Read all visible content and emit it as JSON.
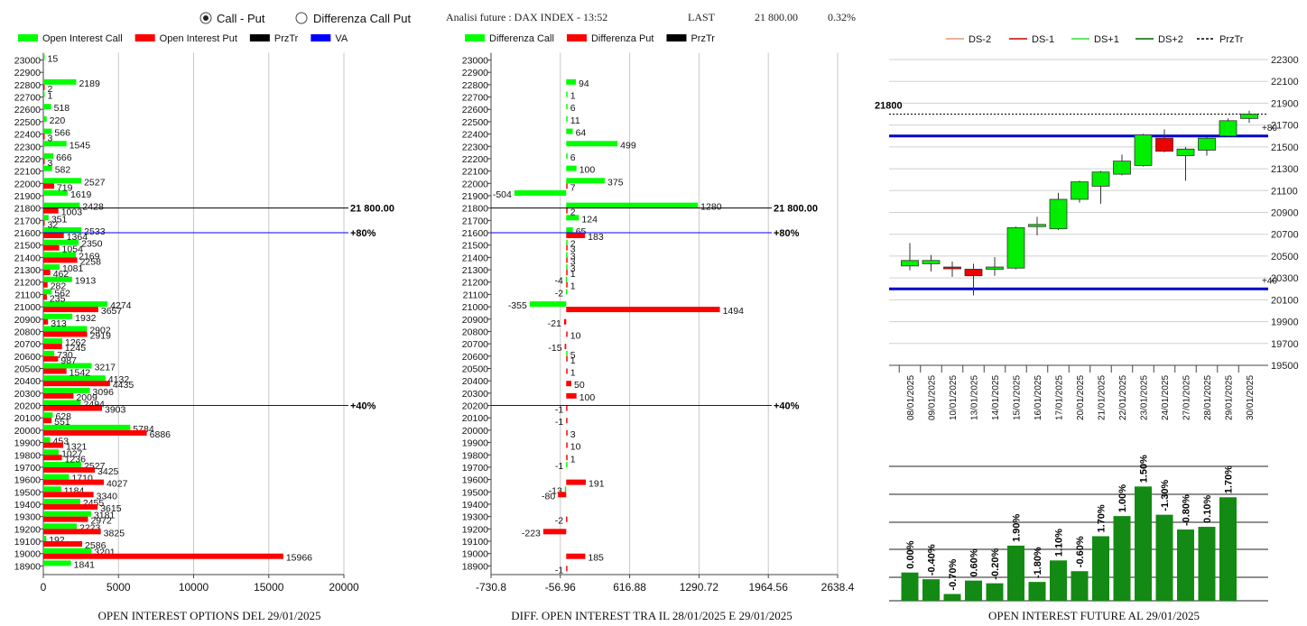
{
  "header": {
    "radio_call_put": "Call - Put",
    "radio_diff": "Differenza Call Put",
    "selected": "Call - Put",
    "analysis_label": "Analisi future : DAX INDEX - 13:52",
    "last_label": "LAST",
    "last_value": "21 800.00",
    "last_change": "0.32%"
  },
  "chart_data": [
    {
      "type": "bar",
      "title": "OPEN INTEREST OPTIONS DEL 29/01/2025",
      "orientation": "horizontal",
      "legend": [
        "Open Interest Call",
        "Open Interest Put",
        "PrzTr",
        "VA"
      ],
      "colors": {
        "call": "#00ff00",
        "put": "#ff0000",
        "prztr": "#000000",
        "va": "#0000ff"
      },
      "strikes": [
        23000,
        22900,
        22800,
        22700,
        22600,
        22500,
        22400,
        22300,
        22200,
        22100,
        22000,
        21900,
        21800,
        21700,
        21600,
        21500,
        21400,
        21300,
        21200,
        21100,
        21000,
        20900,
        20800,
        20700,
        20600,
        20500,
        20400,
        20300,
        20200,
        20100,
        20000,
        19900,
        19800,
        19700,
        19600,
        19500,
        19400,
        19300,
        19200,
        19100,
        19000,
        18900
      ],
      "series": [
        {
          "name": "Open Interest Call",
          "values": [
            15,
            null,
            2189,
            1,
            518,
            220,
            566,
            1545,
            666,
            582,
            2527,
            1619,
            2428,
            351,
            2533,
            2350,
            2169,
            1081,
            1913,
            562,
            4274,
            1932,
            2902,
            1262,
            730,
            3217,
            4132,
            3096,
            2494,
            628,
            5784,
            453,
            1027,
            2527,
            1710,
            1184,
            2455,
            3181,
            2223,
            192,
            3201,
            1841
          ]
        },
        {
          "name": "Open Interest Put",
          "values": [
            null,
            null,
            2,
            null,
            null,
            null,
            3,
            null,
            3,
            null,
            719,
            null,
            1003,
            32,
            1364,
            1054,
            2258,
            462,
            282,
            235,
            3657,
            313,
            2919,
            1245,
            987,
            1542,
            4435,
            2009,
            3903,
            551,
            6886,
            1321,
            1236,
            3425,
            4027,
            3340,
            3615,
            2972,
            3825,
            2586,
            15966,
            null
          ]
        }
      ],
      "reference_lines": [
        {
          "label": "21 800.00",
          "y": 21800,
          "color": "#000000"
        },
        {
          "label": "+80%",
          "y": 21600,
          "color": "#0000ff"
        },
        {
          "label": "+40%",
          "y": 20200,
          "color": "#0000ff"
        }
      ],
      "xlim": [
        0,
        20000
      ],
      "x_ticks": [
        "0",
        "5000",
        "10000",
        "15000",
        "20000"
      ]
    },
    {
      "type": "bar",
      "title": "DIFF. OPEN INTEREST TRA IL 28/01/2025 E 29/01/2025",
      "orientation": "horizontal",
      "legend": [
        "Differenza Call",
        "Differenza Put",
        "PrzTr"
      ],
      "strikes": [
        23000,
        22900,
        22800,
        22700,
        22600,
        22500,
        22400,
        22300,
        22200,
        22100,
        22000,
        21900,
        21800,
        21700,
        21600,
        21500,
        21400,
        21300,
        21200,
        21100,
        21000,
        20900,
        20800,
        20700,
        20600,
        20500,
        20400,
        20300,
        20200,
        20100,
        20000,
        19900,
        19800,
        19700,
        19600,
        19500,
        19400,
        19300,
        19200,
        19100,
        19000,
        18900
      ],
      "series": [
        {
          "name": "Differenza Call",
          "values": [
            null,
            null,
            94,
            1,
            6,
            11,
            64,
            499,
            6,
            100,
            375,
            -504,
            1280,
            124,
            65,
            2,
            3,
            3,
            -4,
            -2,
            -355,
            null,
            null,
            null,
            5,
            null,
            null,
            null,
            null,
            null,
            null,
            null,
            null,
            -1,
            null,
            -13,
            null,
            null,
            null,
            null,
            null,
            null
          ]
        },
        {
          "name": "Differenza Put",
          "values": [
            null,
            null,
            null,
            null,
            null,
            null,
            null,
            null,
            null,
            null,
            7,
            null,
            2,
            null,
            183,
            3,
            3,
            1,
            1,
            null,
            1494,
            -21,
            10,
            -15,
            1,
            1,
            50,
            100,
            -1,
            -1,
            3,
            10,
            1,
            null,
            191,
            -80,
            null,
            -2,
            -223,
            null,
            185,
            -1
          ]
        }
      ],
      "reference_lines": [
        {
          "label": "21 800.00",
          "y": 21800,
          "color": "#000000"
        },
        {
          "label": "+80%",
          "y": 21600,
          "color": "#0000ff"
        },
        {
          "label": "+40%",
          "y": 20200,
          "color": "#0000ff"
        }
      ],
      "xlim": [
        -730.8,
        2638.4
      ],
      "x_ticks": [
        "-730.8",
        "-56.96",
        "616.88",
        "1290.72",
        "1964.56",
        "2638.4"
      ]
    },
    {
      "type": "candlestick",
      "legend": [
        "DS-2",
        "DS-1",
        "DS+1",
        "DS+2",
        "PrzTr"
      ],
      "legend_colors": [
        "#e9967a",
        "#cc0000",
        "#33dd33",
        "#006400",
        "#000000"
      ],
      "dates": [
        "08/01/2025",
        "09/01/2025",
        "10/01/2025",
        "13/01/2025",
        "14/01/2025",
        "15/01/2025",
        "16/01/2025",
        "17/01/2025",
        "20/01/2025",
        "21/01/2025",
        "22/01/2025",
        "23/01/2025",
        "24/01/2025",
        "27/01/2025",
        "28/01/2025",
        "29/01/2025",
        "30/01/2025"
      ],
      "candles": [
        {
          "o": 20410,
          "c": 20460,
          "h": 20620,
          "l": 20370
        },
        {
          "o": 20430,
          "c": 20460,
          "h": 20510,
          "l": 20360
        },
        {
          "o": 20400,
          "c": 20390,
          "h": 20450,
          "l": 20310
        },
        {
          "o": 20380,
          "c": 20320,
          "h": 20430,
          "l": 20140
        },
        {
          "o": 20380,
          "c": 20400,
          "h": 20490,
          "l": 20320
        },
        {
          "o": 20390,
          "c": 20760,
          "h": 20770,
          "l": 20380
        },
        {
          "o": 20770,
          "c": 20790,
          "h": 20860,
          "l": 20690
        },
        {
          "o": 20750,
          "c": 21020,
          "h": 21080,
          "l": 20740
        },
        {
          "o": 21020,
          "c": 21180,
          "h": 21190,
          "l": 20990
        },
        {
          "o": 21140,
          "c": 21270,
          "h": 21280,
          "l": 20980
        },
        {
          "o": 21250,
          "c": 21370,
          "h": 21430,
          "l": 21240
        },
        {
          "o": 21330,
          "c": 21610,
          "h": 21620,
          "l": 21320
        },
        {
          "o": 21580,
          "c": 21460,
          "h": 21660,
          "l": 21450
        },
        {
          "o": 21420,
          "c": 21480,
          "h": 21500,
          "l": 21190
        },
        {
          "o": 21470,
          "c": 21580,
          "h": 21590,
          "l": 21420
        },
        {
          "o": 21600,
          "c": 21740,
          "h": 21760,
          "l": 21590
        },
        {
          "o": 21760,
          "c": 21800,
          "h": 21830,
          "l": 21720
        }
      ],
      "hlines": [
        {
          "y": 21600,
          "color": "#0000cc",
          "label": "+80"
        },
        {
          "y": 20200,
          "color": "#0000cc",
          "label": "+40"
        }
      ],
      "prztr": {
        "y": 21800,
        "label": "21800"
      },
      "ylim": [
        19500,
        22300
      ],
      "y_ticks": [
        22300,
        22100,
        21900,
        21700,
        21500,
        21300,
        21100,
        20900,
        20700,
        20500,
        20300,
        20100,
        19900,
        19700,
        19500
      ]
    },
    {
      "type": "bar",
      "title": "OPEN INTEREST FUTURE AL 29/01/2025",
      "categories": [
        "08/01/2025",
        "09/01/2025",
        "10/01/2025",
        "13/01/2025",
        "14/01/2025",
        "15/01/2025",
        "16/01/2025",
        "17/01/2025",
        "20/01/2025",
        "21/01/2025",
        "22/01/2025",
        "23/01/2025",
        "24/01/2025",
        "27/01/2025",
        "28/01/2025",
        "29/01/2025",
        "30/01/2025"
      ],
      "labels": [
        "0.00%",
        "-0.40%",
        "-0.70%",
        "0.60%",
        "-0.20%",
        "1.90%",
        "-1.80%",
        "1.10%",
        "-0.60%",
        "1.70%",
        "1.00%",
        "1.50%",
        "-1.30%",
        "-0.80%",
        "0.10%",
        "1.70%",
        ""
      ],
      "values": [
        0.21,
        0.16,
        0.05,
        0.15,
        0.13,
        0.41,
        0.14,
        0.3,
        0.22,
        0.48,
        0.63,
        0.85,
        0.64,
        0.53,
        0.55,
        0.77,
        null
      ],
      "color": "#138a13"
    }
  ]
}
